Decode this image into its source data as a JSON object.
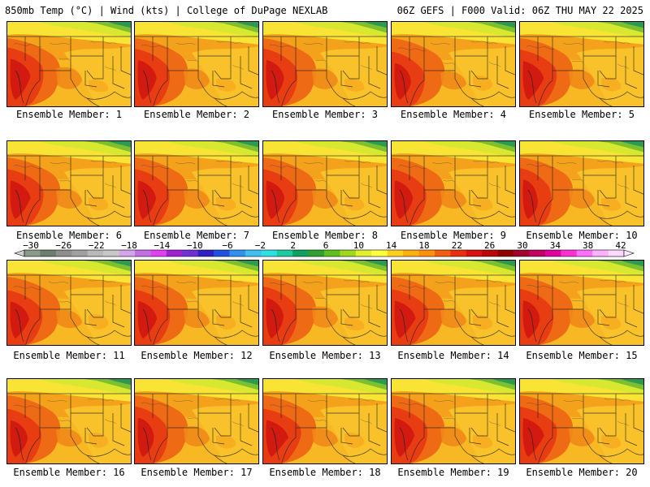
{
  "header": {
    "left": "850mb Temp (°C) | Wind (kts) | College of DuPage NEXLAB",
    "right": "06Z GEFS | F000 Valid: 06Z THU MAY 22 2025"
  },
  "panel_label_prefix": "Ensemble Member:",
  "members": [
    {
      "label": "Ensemble Member: 1"
    },
    {
      "label": "Ensemble Member: 2"
    },
    {
      "label": "Ensemble Member: 3"
    },
    {
      "label": "Ensemble Member: 4"
    },
    {
      "label": "Ensemble Member: 5"
    },
    {
      "label": "Ensemble Member: 6"
    },
    {
      "label": "Ensemble Member: 7"
    },
    {
      "label": "Ensemble Member: 8"
    },
    {
      "label": "Ensemble Member: 9"
    },
    {
      "label": "Ensemble Member: 10"
    },
    {
      "label": "Ensemble Member: 11"
    },
    {
      "label": "Ensemble Member: 12"
    },
    {
      "label": "Ensemble Member: 13"
    },
    {
      "label": "Ensemble Member: 14"
    },
    {
      "label": "Ensemble Member: 15"
    },
    {
      "label": "Ensemble Member: 16"
    },
    {
      "label": "Ensemble Member: 17"
    },
    {
      "label": "Ensemble Member: 18"
    },
    {
      "label": "Ensemble Member: 19"
    },
    {
      "label": "Ensemble Member: 20"
    }
  ],
  "colorbar": {
    "ticks": [
      "−30",
      "−26",
      "−22",
      "−18",
      "−14",
      "−10",
      "−6",
      "−2",
      "2",
      "6",
      "10",
      "14",
      "18",
      "22",
      "26",
      "30",
      "34",
      "38",
      "42"
    ],
    "colors": [
      "#8a9a8a",
      "#6e7e6e",
      "#8e8e8e",
      "#a0a0a0",
      "#b8b8b8",
      "#c8c8c8",
      "#d2a6e8",
      "#c070e0",
      "#e040f0",
      "#a020d0",
      "#7030d0",
      "#3020c0",
      "#2050e0",
      "#3090f0",
      "#40c0f0",
      "#30e0e0",
      "#20c8a0",
      "#10a060",
      "#30a030",
      "#60c020",
      "#a0d820",
      "#e0f030",
      "#ffff40",
      "#ffd020",
      "#ffb010",
      "#ff9010",
      "#f06010",
      "#e83010",
      "#d81010",
      "#b80808",
      "#900000",
      "#a00030",
      "#c00060",
      "#e000a0",
      "#ff30d0",
      "#ff70ff",
      "#ffb0ff",
      "#ffd8ff"
    ]
  }
}
